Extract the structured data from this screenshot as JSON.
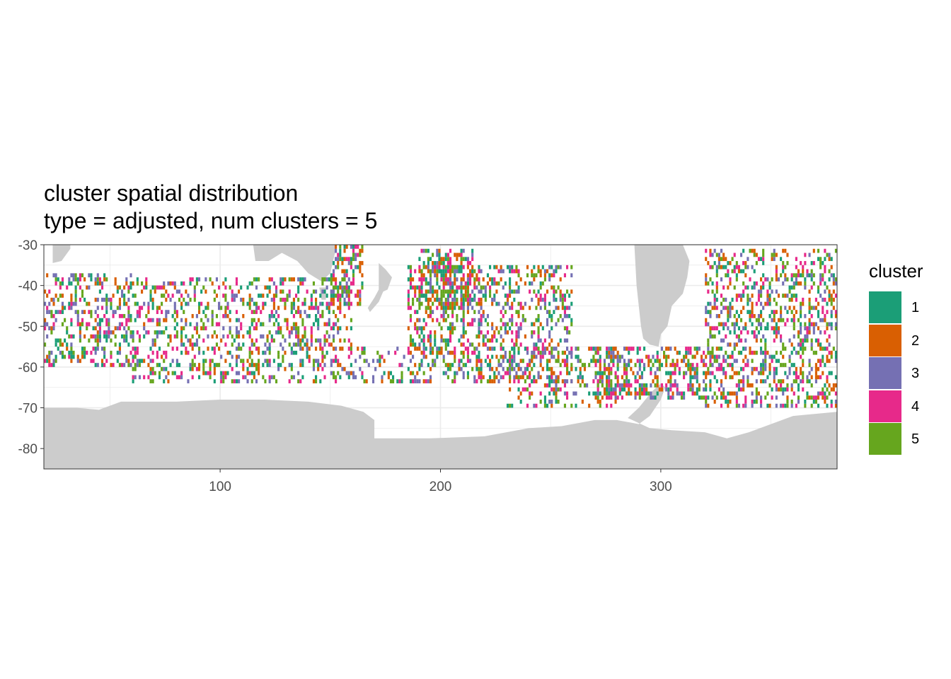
{
  "title": {
    "line1": "cluster spatial distribution",
    "line2": "type = adjusted, num clusters = 5"
  },
  "chart_data": {
    "type": "heatmap",
    "description_fields": "gridded ocean cells colored by cluster id; land shown in grey",
    "xlim": [
      20,
      380
    ],
    "ylim": [
      -85,
      -30
    ],
    "x_ticks": [
      100,
      200,
      300
    ],
    "y_ticks": [
      -30,
      -40,
      -50,
      -60,
      -70,
      -80
    ],
    "grid": true,
    "legend": {
      "title": "cluster",
      "placement": "right",
      "entries": [
        {
          "label": "1",
          "color": "#1b9e77"
        },
        {
          "label": "2",
          "color": "#d95f02"
        },
        {
          "label": "3",
          "color": "#7570b3"
        },
        {
          "label": "4",
          "color": "#e7298a"
        },
        {
          "label": "5",
          "color": "#66a61e"
        }
      ]
    },
    "land_color": "#cccccc",
    "cluster_bands": [
      {
        "x": [
          20,
          60
        ],
        "y": [
          -60,
          -37
        ],
        "density": 0.35
      },
      {
        "x": [
          60,
          160
        ],
        "y": [
          -64,
          -38
        ],
        "density": 0.3
      },
      {
        "x": [
          150,
          165
        ],
        "y": [
          -45,
          -30
        ],
        "density": 0.5
      },
      {
        "x": [
          160,
          185
        ],
        "y": [
          -64,
          -55
        ],
        "density": 0.2
      },
      {
        "x": [
          185,
          260
        ],
        "y": [
          -64,
          -35
        ],
        "density": 0.35
      },
      {
        "x": [
          190,
          215
        ],
        "y": [
          -45,
          -31
        ],
        "density": 0.45
      },
      {
        "x": [
          230,
          280
        ],
        "y": [
          -72,
          -55
        ],
        "density": 0.25
      },
      {
        "x": [
          270,
          320
        ],
        "y": [
          -68,
          -55
        ],
        "density": 0.45
      },
      {
        "x": [
          320,
          380
        ],
        "y": [
          -70,
          -31
        ],
        "density": 0.35
      }
    ]
  }
}
